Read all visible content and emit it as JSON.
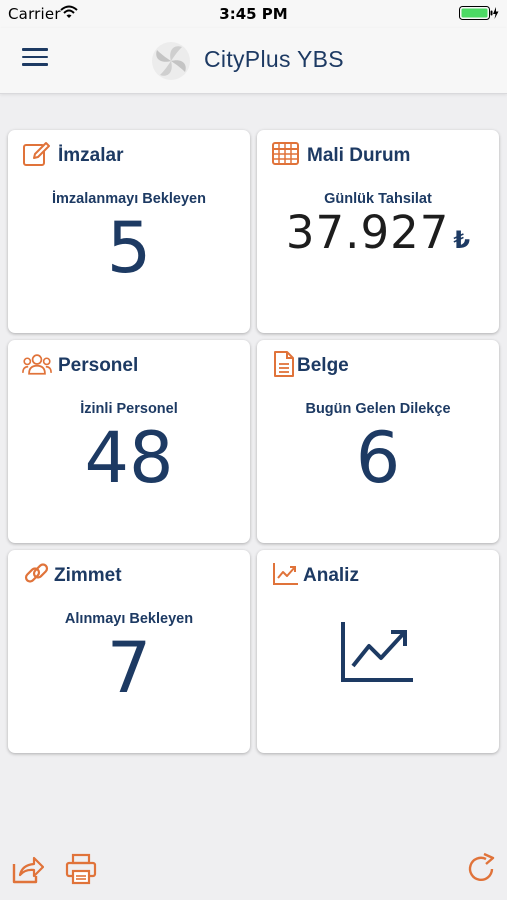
{
  "status_bar": {
    "carrier": "Carrier",
    "time": "3:45 PM",
    "wifi_icon": "wifi-icon",
    "battery_icon": "battery-charging-icon"
  },
  "header": {
    "menu_icon": "hamburger-menu-icon",
    "logo_icon": "cityplus-logo-icon",
    "title": "CityPlus YBS"
  },
  "colors": {
    "navy": "#1d3a63",
    "accent_orange": "#e0733a",
    "background": "#efeff1",
    "card": "#ffffff"
  },
  "cards": {
    "imzalar": {
      "title": "İmzalar",
      "icon": "signature-edit-icon",
      "label": "İmzalanmayı Bekleyen",
      "value": "5"
    },
    "mali_durum": {
      "title": "Mali Durum",
      "icon": "table-grid-icon",
      "label": "Günlük Tahsilat",
      "value": "37.927",
      "currency": "₺"
    },
    "personel": {
      "title": "Personel",
      "icon": "users-group-icon",
      "label": "İzinli Personel",
      "value": "48"
    },
    "belge": {
      "title": "Belge",
      "icon": "document-icon",
      "label": "Bugün Gelen Dilekçe",
      "value": "6"
    },
    "zimmet": {
      "title": "Zimmet",
      "icon": "link-chain-icon",
      "label": "Alınmayı Bekleyen",
      "value": "7"
    },
    "analiz": {
      "title": "Analiz",
      "icon": "line-chart-icon",
      "graph_icon": "trend-chart-icon"
    }
  },
  "bottom_bar": {
    "share_icon": "share-icon",
    "print_icon": "printer-icon",
    "refresh_icon": "refresh-icon"
  }
}
